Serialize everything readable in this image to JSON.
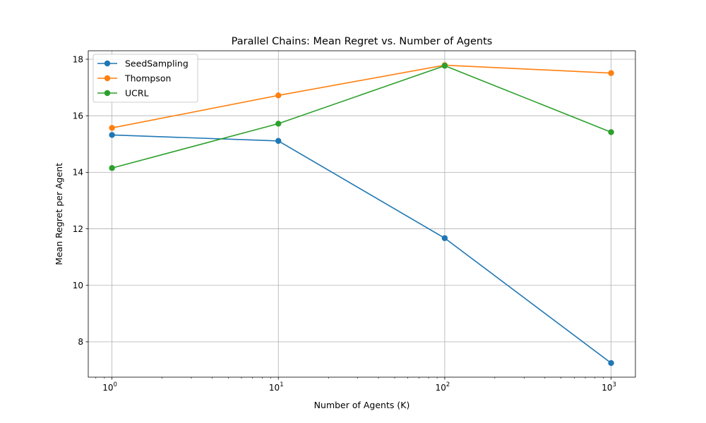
{
  "chart_data": {
    "type": "line",
    "title": "Parallel Chains: Mean Regret vs. Number of Agents",
    "xlabel": "Number of Agents (K)",
    "ylabel": "Mean Regret per Agent",
    "xscale": "log",
    "x": [
      1,
      10,
      100,
      1000
    ],
    "xlim": [
      0.72,
      1400
    ],
    "ylim": [
      6.75,
      18.3
    ],
    "x_ticks": [
      {
        "value": 1,
        "base": "10",
        "exp": "0"
      },
      {
        "value": 10,
        "base": "10",
        "exp": "1"
      },
      {
        "value": 100,
        "base": "10",
        "exp": "2"
      },
      {
        "value": 1000,
        "base": "10",
        "exp": "3"
      }
    ],
    "y_ticks": [
      {
        "value": 8,
        "label": "8"
      },
      {
        "value": 10,
        "label": "10"
      },
      {
        "value": 12,
        "label": "12"
      },
      {
        "value": 14,
        "label": "14"
      },
      {
        "value": 16,
        "label": "16"
      },
      {
        "value": 18,
        "label": "18"
      }
    ],
    "grid": true,
    "legend_position": "upper-left",
    "series": [
      {
        "name": "SeedSampling",
        "color": "#1f77b4",
        "values": [
          15.32,
          15.11,
          11.67,
          7.25
        ]
      },
      {
        "name": "Thompson",
        "color": "#ff7f0e",
        "values": [
          15.57,
          16.72,
          17.79,
          17.51
        ]
      },
      {
        "name": "UCRL",
        "color": "#2ca02c",
        "values": [
          14.15,
          15.72,
          17.77,
          15.42
        ]
      }
    ]
  }
}
